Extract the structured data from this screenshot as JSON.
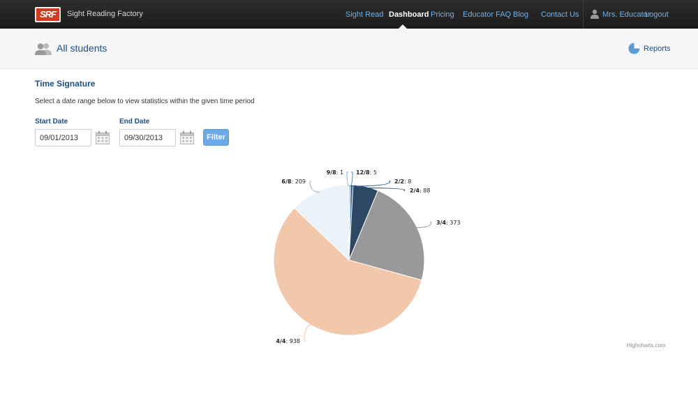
{
  "header": {
    "logo_text": "SRF",
    "brand": "Sight Reading Factory",
    "nav": [
      {
        "label": "Sight Read"
      },
      {
        "label": "Dashboard",
        "active": true
      },
      {
        "label": "Pricing"
      },
      {
        "label": "Educator FAQ"
      },
      {
        "label": "Blog"
      },
      {
        "label": "Contact Us"
      }
    ],
    "user_name": "Mrs. Educator",
    "logout": "Logout"
  },
  "subheader": {
    "title": "All students",
    "reports_label": "Reports"
  },
  "section": {
    "title": "Time Signature",
    "instructions": "Select a date range below to view statistics within the given time period"
  },
  "filters": {
    "start_label": "Start Date",
    "start_value": "09/01/2013",
    "end_label": "End Date",
    "end_value": "09/30/2013",
    "filter_button": "Filter"
  },
  "chart_data": {
    "type": "pie",
    "slices": [
      {
        "label": "9/8",
        "value": 1,
        "color": "#7cb5ec"
      },
      {
        "label": "12/8",
        "value": 5,
        "color": "#4a7eb8"
      },
      {
        "label": "2/2",
        "value": 8,
        "color": "#1f5a96"
      },
      {
        "label": "2/4",
        "value": 88,
        "color": "#2c4864"
      },
      {
        "label": "3/4",
        "value": 373,
        "color": "#999999"
      },
      {
        "label": "4/4",
        "value": 938,
        "color": "#f2c8aa"
      },
      {
        "label": "6/8",
        "value": 209,
        "color": "#eaf2fa"
      }
    ],
    "credits": "Highcharts.com"
  }
}
